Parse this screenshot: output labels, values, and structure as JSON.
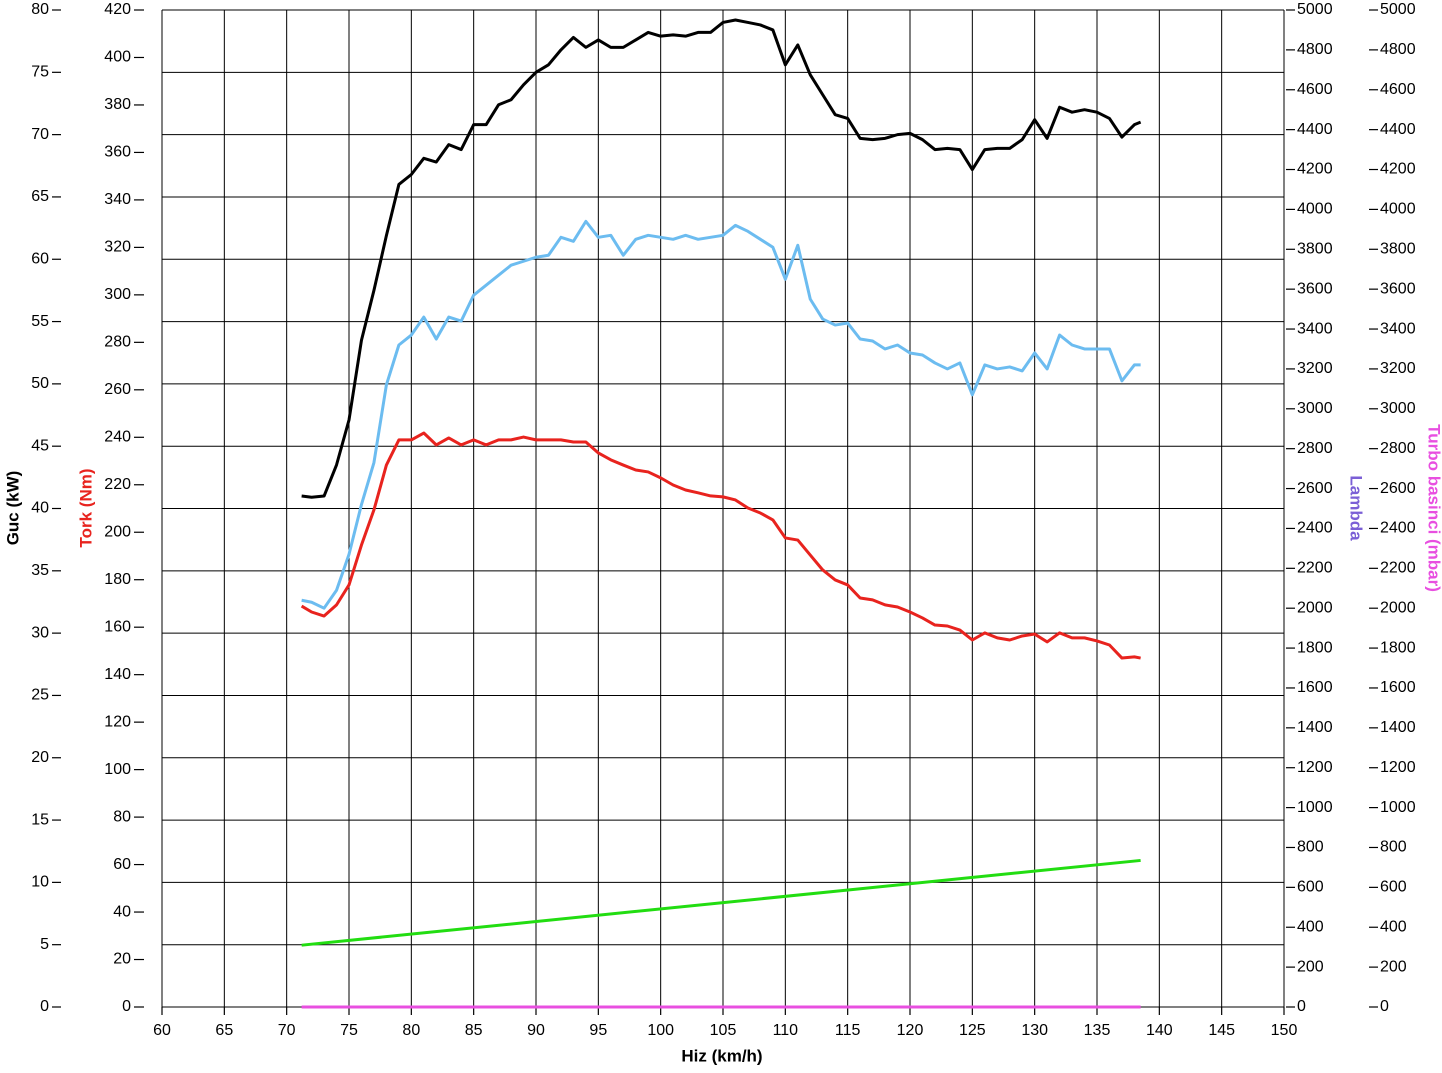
{
  "chart_data": {
    "type": "line",
    "xlabel": "Hiz (km/h)",
    "xlim": [
      60,
      150
    ],
    "xticks": [
      60,
      65,
      70,
      75,
      80,
      85,
      90,
      95,
      100,
      105,
      110,
      115,
      120,
      125,
      130,
      135,
      140,
      145,
      150
    ],
    "grid": true,
    "ylabel": "Guc (kW)",
    "ylabel_color": "#000000",
    "ylim": [
      0,
      80
    ],
    "yticks": [
      0,
      5,
      10,
      15,
      20,
      25,
      30,
      35,
      40,
      45,
      50,
      55,
      60,
      65,
      70,
      75,
      80
    ],
    "y2label": "Tork (Nm)",
    "y2label_color": "#e8231e",
    "y2lim": [
      0,
      420
    ],
    "y2ticks": [
      0,
      20,
      40,
      60,
      80,
      100,
      120,
      140,
      160,
      180,
      200,
      220,
      240,
      260,
      280,
      300,
      320,
      340,
      360,
      380,
      400,
      420
    ],
    "y3label": "Lambda",
    "y3label_color": "#7b5fd6",
    "y3lim": [
      0,
      5000
    ],
    "y3ticks": [
      0,
      200,
      400,
      600,
      800,
      1000,
      1200,
      1400,
      1600,
      1800,
      2000,
      2200,
      2400,
      2600,
      2800,
      3000,
      3200,
      3400,
      3600,
      3800,
      4000,
      4200,
      4400,
      4600,
      4800,
      5000
    ],
    "y4label": "Turbo basinci (mbar)",
    "y4label_color": "#e84fe0",
    "y4lim": [
      0,
      5000
    ],
    "y4ticks": [
      0,
      200,
      400,
      600,
      800,
      1000,
      1200,
      1400,
      1600,
      1800,
      2000,
      2200,
      2400,
      2600,
      2800,
      3000,
      3200,
      3400,
      3600,
      3800,
      4000,
      4200,
      4400,
      4600,
      4800,
      5000
    ],
    "series": [
      {
        "color": "#000000",
        "axis": "y",
        "x": [
          71.2,
          72,
          73,
          74,
          75,
          76,
          77,
          78,
          79,
          80,
          81,
          82,
          83,
          84,
          85,
          86,
          87,
          88,
          89,
          90,
          91,
          92,
          93,
          94,
          95,
          96,
          97,
          98,
          99,
          100,
          101,
          102,
          103,
          104,
          105,
          106,
          107,
          108,
          109,
          110,
          111,
          112,
          113,
          114,
          115,
          116,
          117,
          118,
          119,
          120,
          121,
          122,
          123,
          124,
          125,
          126,
          127,
          128,
          129,
          130,
          131,
          132,
          133,
          134,
          135,
          136,
          137,
          138,
          138.5
        ],
        "values": [
          41.0,
          40.9,
          41.0,
          43.5,
          47.1,
          53.5,
          57.5,
          61.9,
          66.0,
          66.8,
          68.1,
          67.8,
          69.2,
          68.8,
          70.8,
          70.8,
          72.4,
          72.8,
          74.0,
          75.0,
          75.6,
          76.8,
          77.8,
          77.0,
          77.6,
          77.0,
          77.0,
          77.6,
          78.2,
          77.9,
          78.0,
          77.9,
          78.2,
          78.2,
          79.0,
          79.2,
          79.0,
          78.8,
          78.4,
          75.6,
          77.2,
          74.8,
          73.2,
          71.6,
          71.3,
          69.7,
          69.6,
          69.7,
          70.0,
          70.1,
          69.6,
          68.8,
          68.9,
          68.8,
          67.2,
          68.8,
          68.9,
          68.9,
          69.6,
          71.2,
          69.7,
          72.2,
          71.8,
          72.0,
          71.8,
          71.3,
          69.8,
          70.8,
          71.0
        ]
      },
      {
        "color": "#e8231e",
        "axis": "y2",
        "x": [
          71.2,
          72,
          73,
          74,
          75,
          76,
          77,
          78,
          79,
          80,
          81,
          82,
          83,
          84,
          85,
          86,
          87,
          88,
          89,
          90,
          91,
          92,
          93,
          94,
          95,
          96,
          97,
          98,
          99,
          100,
          101,
          102,
          103,
          104,
          105,
          106,
          107,
          108,
          109,
          110,
          111,
          112,
          113,
          114,
          115,
          116,
          117,
          118,
          119,
          120,
          121,
          122,
          123,
          124,
          125,
          126,
          127,
          128,
          129,
          130,
          131,
          132,
          133,
          134,
          135,
          136,
          137,
          138,
          138.5
        ],
        "values": [
          168.9,
          166.4,
          164.7,
          169.4,
          177.8,
          194.6,
          209.4,
          228.3,
          238.9,
          238.9,
          241.8,
          236.8,
          239.7,
          236.8,
          238.9,
          236.8,
          238.9,
          238.9,
          240.1,
          238.9,
          238.9,
          238.9,
          238.0,
          238.0,
          233.4,
          230.5,
          228.3,
          226.2,
          225.4,
          222.9,
          219.9,
          217.8,
          216.6,
          215.3,
          214.9,
          213.6,
          210.2,
          208.1,
          205.2,
          197.6,
          196.7,
          190.4,
          184.1,
          179.9,
          177.8,
          172.3,
          171.5,
          169.4,
          168.5,
          166.4,
          163.9,
          160.9,
          160.5,
          158.8,
          154.6,
          157.6,
          155.5,
          154.6,
          156.3,
          157.1,
          153.8,
          157.6,
          155.5,
          155.5,
          154.2,
          152.5,
          147.0,
          147.5,
          147.0
        ]
      },
      {
        "color": "#6cbcf0",
        "axis": "y3",
        "x": [
          71.2,
          72,
          73,
          74,
          75,
          76,
          77,
          78,
          79,
          80,
          81,
          82,
          83,
          84,
          85,
          86,
          87,
          88,
          89,
          90,
          91,
          92,
          93,
          94,
          95,
          96,
          97,
          98,
          99,
          100,
          101,
          102,
          103,
          104,
          105,
          106,
          107,
          108,
          109,
          110,
          111,
          112,
          113,
          114,
          115,
          116,
          117,
          118,
          119,
          120,
          121,
          122,
          123,
          124,
          125,
          126,
          127,
          128,
          129,
          130,
          131,
          132,
          133,
          134,
          135,
          136,
          137,
          138,
          138.5
        ],
        "values": [
          2040,
          2030,
          2000,
          2090,
          2270,
          2520,
          2730,
          3120,
          3320,
          3370,
          3460,
          3350,
          3460,
          3440,
          3570,
          3620,
          3670,
          3720,
          3740,
          3760,
          3770,
          3860,
          3840,
          3940,
          3860,
          3870,
          3770,
          3850,
          3870,
          3860,
          3850,
          3870,
          3850,
          3860,
          3870,
          3920,
          3890,
          3850,
          3810,
          3650,
          3820,
          3550,
          3450,
          3420,
          3430,
          3350,
          3340,
          3300,
          3320,
          3280,
          3270,
          3230,
          3200,
          3230,
          3070,
          3220,
          3200,
          3210,
          3190,
          3280,
          3200,
          3370,
          3320,
          3300,
          3300,
          3300,
          3140,
          3220,
          3220
        ]
      },
      {
        "color": "#22dd11",
        "axis": "y3",
        "x": [
          71.2,
          138.5
        ],
        "values": [
          310,
          735
        ]
      },
      {
        "color": "#e84fe0",
        "axis": "y4",
        "x": [
          71.2,
          138.5
        ],
        "values": [
          0,
          0
        ]
      }
    ]
  }
}
